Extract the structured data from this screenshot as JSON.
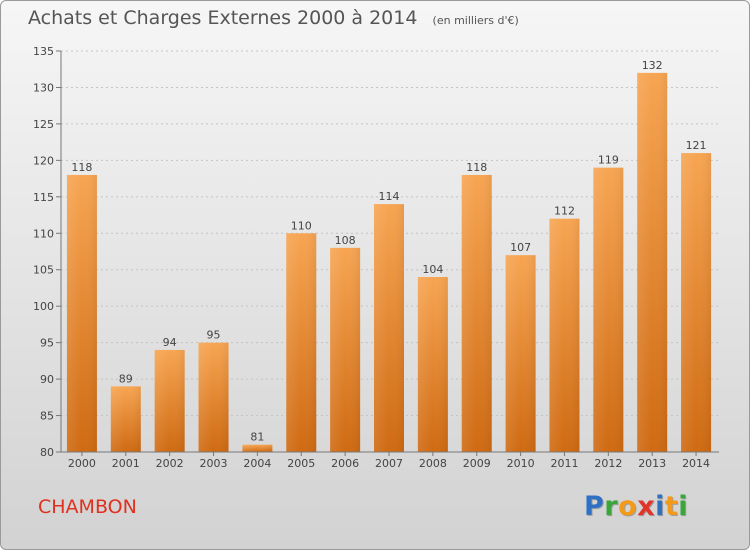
{
  "chart_data": {
    "type": "bar",
    "title": "Achats et Charges Externes 2000 à 2014",
    "subtitle": "(en milliers d'€)",
    "categories": [
      "2000",
      "2001",
      "2002",
      "2003",
      "2004",
      "2005",
      "2006",
      "2007",
      "2008",
      "2009",
      "2010",
      "2011",
      "2012",
      "2013",
      "2014"
    ],
    "values": [
      118,
      89,
      94,
      95,
      81,
      110,
      108,
      114,
      104,
      118,
      107,
      112,
      119,
      132,
      121
    ],
    "ylim": [
      80,
      135
    ],
    "yticks": [
      80,
      85,
      90,
      95,
      100,
      105,
      110,
      115,
      120,
      125,
      130,
      135
    ],
    "grid": true,
    "bar_color": "#f08a30",
    "data_labels": true
  },
  "place_name": "CHAMBON",
  "brand": {
    "letters": [
      {
        "ch": "P",
        "color": "#2f6fc4"
      },
      {
        "ch": "r",
        "color": "#3aa53a"
      },
      {
        "ch": "o",
        "color": "#f39a1b"
      },
      {
        "ch": "x",
        "color": "#e2352a"
      },
      {
        "ch": "i",
        "color": "#2f6fc4"
      },
      {
        "ch": "t",
        "color": "#f39a1b"
      },
      {
        "ch": "i",
        "color": "#3aa53a"
      }
    ]
  }
}
